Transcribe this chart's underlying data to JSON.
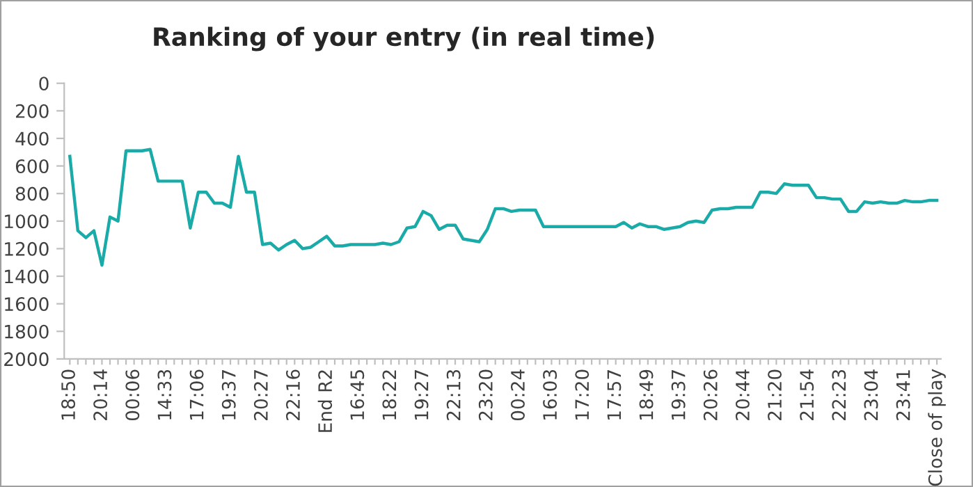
{
  "chart_data": {
    "type": "line",
    "title": "Ranking of your entry (in real time)",
    "categories": [
      "18:50",
      null,
      null,
      null,
      "20:14",
      null,
      null,
      null,
      "00:06",
      null,
      null,
      null,
      "14:33",
      null,
      null,
      null,
      "17:06",
      null,
      null,
      null,
      "19:37",
      null,
      null,
      null,
      "20:27",
      null,
      null,
      null,
      "22:16",
      null,
      null,
      null,
      "End R2",
      null,
      null,
      null,
      "16:45",
      null,
      null,
      null,
      "18:22",
      null,
      null,
      null,
      "19:27",
      null,
      null,
      null,
      "22:13",
      null,
      null,
      null,
      "23:20",
      null,
      null,
      null,
      "00:24",
      null,
      null,
      null,
      "16:03",
      null,
      null,
      null,
      "17:20",
      null,
      null,
      null,
      "17:57",
      null,
      null,
      null,
      "18:49",
      null,
      null,
      null,
      "19:37",
      null,
      null,
      null,
      "20:26",
      null,
      null,
      null,
      "20:44",
      null,
      null,
      null,
      "21:20",
      null,
      null,
      null,
      "21:54",
      null,
      null,
      null,
      "22:23",
      null,
      null,
      null,
      "23:04",
      null,
      null,
      null,
      "23:41",
      null,
      null,
      null,
      "Close of play"
    ],
    "series": [
      {
        "color": "#1aaba8",
        "values": [
          530,
          1070,
          1120,
          1070,
          1320,
          970,
          1000,
          490,
          490,
          490,
          480,
          710,
          710,
          710,
          710,
          1050,
          790,
          790,
          870,
          870,
          900,
          530,
          790,
          790,
          1170,
          1160,
          1210,
          1170,
          1140,
          1200,
          1190,
          1150,
          1110,
          1180,
          1180,
          1170,
          1170,
          1170,
          1170,
          1160,
          1170,
          1150,
          1050,
          1040,
          930,
          960,
          1060,
          1030,
          1030,
          1130,
          1140,
          1150,
          1060,
          910,
          910,
          930,
          920,
          920,
          920,
          1040,
          1040,
          1040,
          1040,
          1040,
          1040,
          1040,
          1040,
          1040,
          1040,
          1010,
          1050,
          1020,
          1040,
          1040,
          1060,
          1050,
          1040,
          1010,
          1000,
          1010,
          920,
          910,
          910,
          900,
          900,
          900,
          790,
          790,
          800,
          730,
          740,
          740,
          740,
          830,
          830,
          840,
          840,
          930,
          930,
          860,
          870,
          860,
          870,
          870,
          850,
          860,
          860,
          850,
          850
        ]
      }
    ],
    "ylim": [
      2000,
      0
    ],
    "yticks": [
      0,
      200,
      400,
      600,
      800,
      1000,
      1200,
      1400,
      1600,
      1800,
      2000
    ],
    "grid": false,
    "legend": false,
    "marker": "none",
    "line_style": "solid"
  }
}
